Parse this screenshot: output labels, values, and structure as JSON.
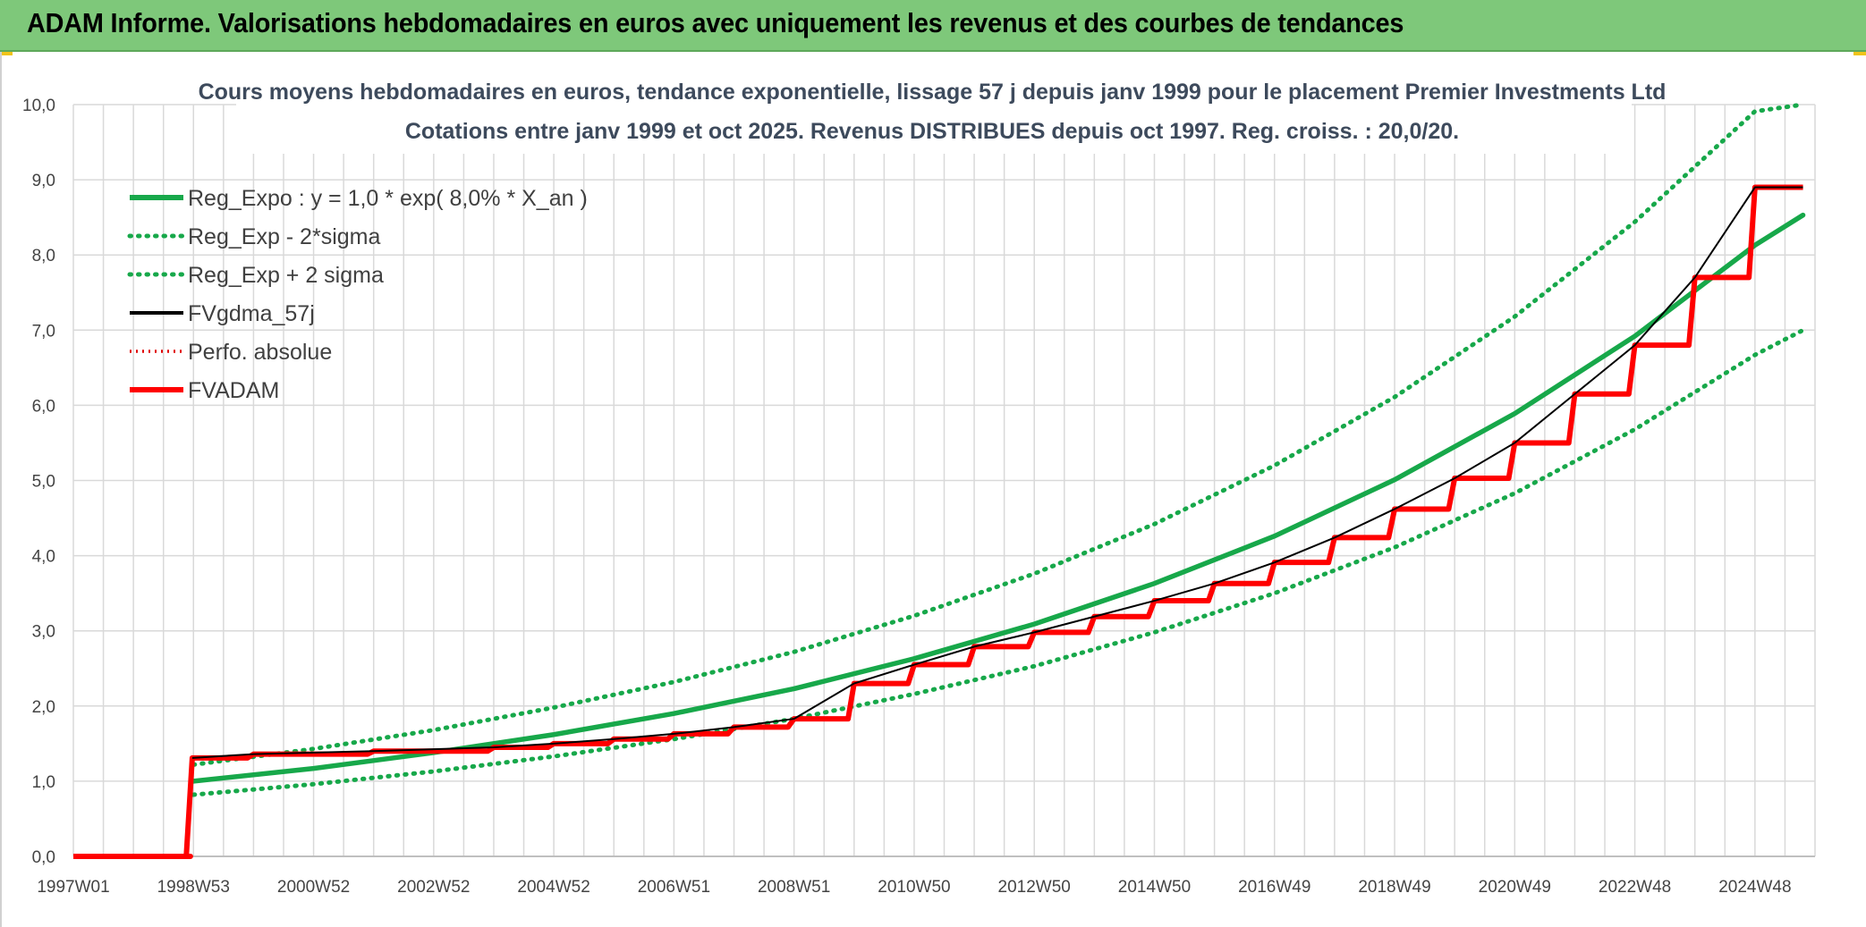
{
  "header": {
    "title": "ADAM Informe. Valorisations hebdomadaires en euros avec uniquement les revenus et des courbes de tendances"
  },
  "colors": {
    "header_bg": "#7ec87a",
    "reg_expo": "#17a84a",
    "sigma": "#17a84a",
    "fvgdma": "#000000",
    "perfo": "#e00000",
    "fvadam": "#ff0000",
    "grid": "#d9d9d9"
  },
  "chart_data": {
    "type": "line",
    "title_lines": [
      "Cours moyens hebdomadaires en euros, tendance exponentielle, lissage 57 j depuis janv 1999 pour le placement Premier Investments Ltd",
      "Cotations entre janv 1999 et oct 2025. Revenus DISTRIBUES depuis oct 1997. Reg. croiss. : 20,0/20."
    ],
    "x_ticks": [
      "1997W01",
      "1998W53",
      "2000W52",
      "2002W52",
      "2004W52",
      "2006W51",
      "2008W51",
      "2010W50",
      "2012W50",
      "2014W50",
      "2016W49",
      "2018W49",
      "2020W49",
      "2022W48",
      "2024W48"
    ],
    "x_range": [
      1997.0,
      2026.0
    ],
    "y_ticks": [
      "0,0",
      "1,0",
      "2,0",
      "3,0",
      "4,0",
      "5,0",
      "6,0",
      "7,0",
      "8,0",
      "9,0",
      "10,0"
    ],
    "ylim": [
      0,
      10
    ],
    "grid": true,
    "legend_position": "top-left",
    "legend": [
      {
        "label": "Reg_Expo : y = 1,0 * exp( 8,0% *  X_an )",
        "style": "solid-thick",
        "color": "#17a84a"
      },
      {
        "label": "Reg_Exp - 2*sigma",
        "style": "dotted",
        "color": "#17a84a"
      },
      {
        "label": "Reg_Exp + 2 sigma",
        "style": "dotted",
        "color": "#17a84a"
      },
      {
        "label": "FVgdma_57j",
        "style": "solid",
        "color": "#000000"
      },
      {
        "label": "Perfo. absolue",
        "style": "dotted-thin",
        "color": "#e00000"
      },
      {
        "label": "FVADAM",
        "style": "solid-thick",
        "color": "#ff0000"
      }
    ],
    "series": [
      {
        "name": "Reg_Expo : y = 1,0 * exp( 8,0% *  X_an )",
        "x": [
          1999.0,
          2001,
          2003,
          2005,
          2007,
          2009,
          2011,
          2013,
          2015,
          2017,
          2019,
          2021,
          2023,
          2025,
          2025.8
        ],
        "y": [
          1.0,
          1.17,
          1.38,
          1.62,
          1.9,
          2.23,
          2.63,
          3.09,
          3.63,
          4.26,
          5.01,
          5.89,
          6.92,
          8.13,
          8.53
        ]
      },
      {
        "name": "Reg_Exp - 2*sigma",
        "x": [
          1999.0,
          2001,
          2003,
          2005,
          2007,
          2009,
          2011,
          2013,
          2015,
          2017,
          2019,
          2021,
          2023,
          2025,
          2025.8
        ],
        "y": [
          0.82,
          0.96,
          1.13,
          1.33,
          1.56,
          1.83,
          2.16,
          2.53,
          2.98,
          3.5,
          4.11,
          4.83,
          5.68,
          6.67,
          7.0
        ]
      },
      {
        "name": "Reg_Exp + 2 sigma",
        "x": [
          1999.0,
          2001,
          2003,
          2005,
          2007,
          2009,
          2011,
          2013,
          2015,
          2017,
          2019,
          2021,
          2023,
          2025,
          2025.8
        ],
        "y": [
          1.22,
          1.43,
          1.68,
          1.98,
          2.32,
          2.72,
          3.2,
          3.76,
          4.42,
          5.2,
          6.11,
          7.18,
          8.44,
          9.91,
          10.0
        ]
      },
      {
        "name": "FVADAM",
        "x": [
          1997.0,
          1998.95,
          1998.98,
          2000,
          2002,
          2004,
          2005,
          2006,
          2007,
          2008,
          2009,
          2010,
          2011,
          2012,
          2013,
          2014,
          2015,
          2016,
          2017,
          2018,
          2019,
          2020,
          2021,
          2022,
          2023,
          2024,
          2025,
          2025.8
        ],
        "y": [
          0,
          0,
          1.31,
          1.36,
          1.4,
          1.45,
          1.5,
          1.56,
          1.63,
          1.72,
          1.83,
          2.3,
          2.55,
          2.79,
          2.98,
          3.19,
          3.4,
          3.63,
          3.91,
          4.24,
          4.62,
          5.03,
          5.5,
          6.15,
          6.8,
          7.7,
          8.9,
          8.9
        ]
      }
    ]
  }
}
